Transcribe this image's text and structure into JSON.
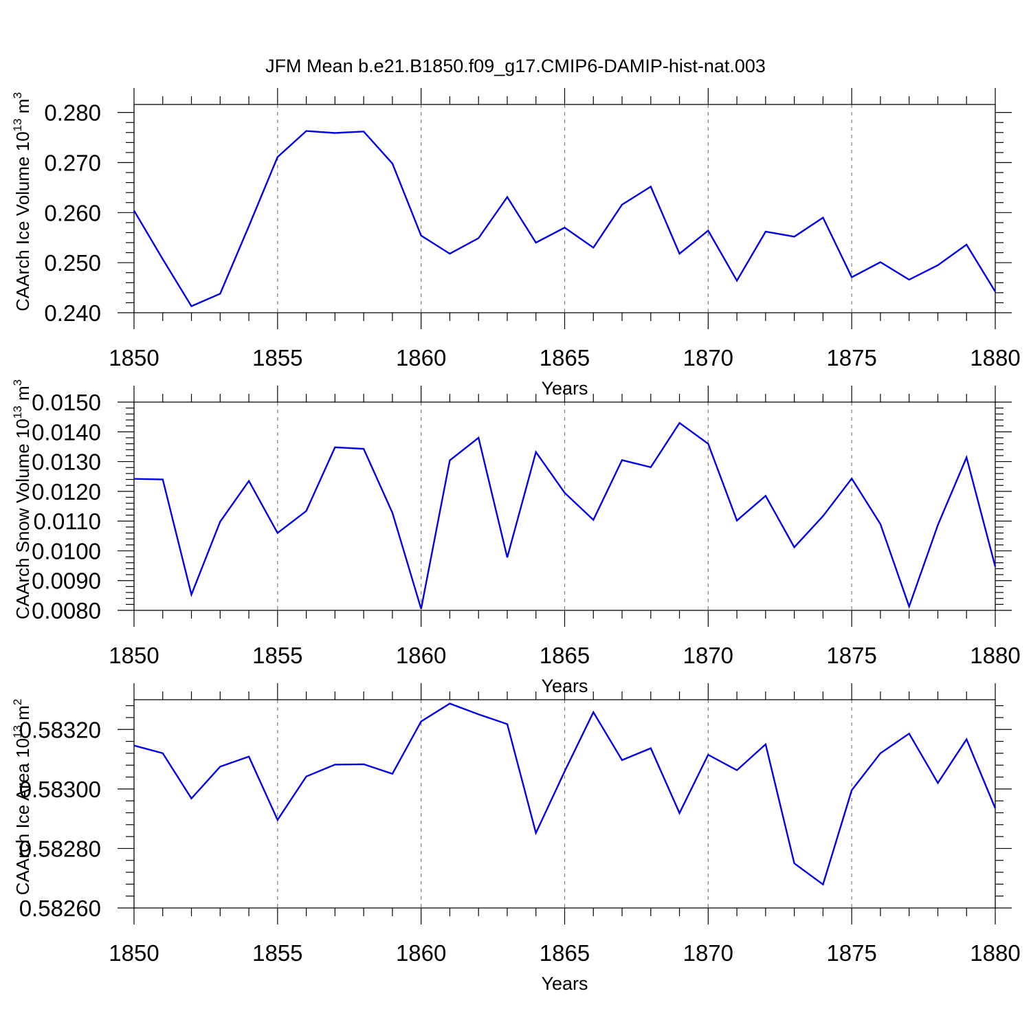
{
  "title": "JFM Mean b.e21.B1850.f09_g17.CMIP6-DAMIP-hist-nat.003",
  "colors": {
    "line": "#0000ee",
    "axes": "#000000",
    "grid": "#808080"
  },
  "chart_data": [
    {
      "type": "line",
      "title": "",
      "xlabel": "Years",
      "ylabel_main": "CAArch Ice Volume 10",
      "ylabel_sup": "13",
      "ylabel_unit": "m",
      "ylabel_unit_sup": "3",
      "xlim": [
        1850,
        1880
      ],
      "ylim": [
        0.24,
        0.2816
      ],
      "x_ticks": [
        1850,
        1855,
        1860,
        1865,
        1870,
        1875,
        1880
      ],
      "x_tick_labels": [
        "1850",
        "1855",
        "1860",
        "1865",
        "1870",
        "1875",
        "1880"
      ],
      "y_ticks": [
        0.24,
        0.25,
        0.26,
        0.27,
        0.28
      ],
      "y_tick_labels": [
        "0.240",
        "0.250",
        "0.260",
        "0.270",
        "0.280"
      ],
      "grid": "vertical dashed at major x ticks",
      "series": [
        {
          "x": [
            1850,
            1851,
            1852,
            1853,
            1854,
            1855,
            1856,
            1857,
            1858,
            1859,
            1860,
            1861,
            1862,
            1863,
            1864,
            1865,
            1866,
            1867,
            1868,
            1869,
            1870,
            1871,
            1872,
            1873,
            1874,
            1875,
            1876,
            1877,
            1878,
            1879,
            1880
          ],
          "values": [
            0.2604,
            0.2507,
            0.2413,
            0.2438,
            0.2573,
            0.2711,
            0.2763,
            0.2759,
            0.2762,
            0.2698,
            0.2554,
            0.2518,
            0.2549,
            0.2631,
            0.254,
            0.257,
            0.253,
            0.2616,
            0.2652,
            0.2518,
            0.2564,
            0.2464,
            0.2562,
            0.2552,
            0.259,
            0.2471,
            0.2501,
            0.2466,
            0.2495,
            0.2536,
            0.2442
          ]
        }
      ]
    },
    {
      "type": "line",
      "title": "",
      "xlabel": "Years",
      "ylabel_main": "CAArch Snow Volume 10",
      "ylabel_sup": "13",
      "ylabel_unit": "m",
      "ylabel_unit_sup": "3",
      "xlim": [
        1850,
        1880
      ],
      "ylim": [
        0.008,
        0.015
      ],
      "x_ticks": [
        1850,
        1855,
        1860,
        1865,
        1870,
        1875,
        1880
      ],
      "x_tick_labels": [
        "1850",
        "1855",
        "1860",
        "1865",
        "1870",
        "1875",
        "1880"
      ],
      "y_ticks": [
        0.008,
        0.009,
        0.01,
        0.011,
        0.012,
        0.013,
        0.014,
        0.015
      ],
      "y_tick_labels": [
        "0.0080",
        "0.0090",
        "0.0100",
        "0.0110",
        "0.0120",
        "0.0130",
        "0.0140",
        "0.0150"
      ],
      "grid": "vertical dashed at major x ticks",
      "series": [
        {
          "x": [
            1850,
            1851,
            1852,
            1853,
            1854,
            1855,
            1856,
            1857,
            1858,
            1859,
            1860,
            1861,
            1862,
            1863,
            1864,
            1865,
            1866,
            1867,
            1868,
            1869,
            1870,
            1871,
            1872,
            1873,
            1874,
            1875,
            1876,
            1877,
            1878,
            1879,
            1880
          ],
          "values": [
            0.01242,
            0.0124,
            0.00853,
            0.01098,
            0.01235,
            0.0106,
            0.01134,
            0.01348,
            0.01343,
            0.01128,
            0.00805,
            0.01304,
            0.0138,
            0.00978,
            0.01332,
            0.01195,
            0.01104,
            0.01305,
            0.01281,
            0.0143,
            0.0136,
            0.01102,
            0.01185,
            0.01012,
            0.01117,
            0.01243,
            0.0109,
            0.00813,
            0.01087,
            0.01314,
            0.00947
          ]
        }
      ]
    },
    {
      "type": "line",
      "title": "",
      "xlabel": "Years",
      "ylabel_main": "CAArch Ice Area 10",
      "ylabel_sup": "13",
      "ylabel_unit": "m",
      "ylabel_unit_sup": "2",
      "xlim": [
        1850,
        1880
      ],
      "ylim": [
        0.5826,
        0.5833
      ],
      "x_ticks": [
        1850,
        1855,
        1860,
        1865,
        1870,
        1875,
        1880
      ],
      "x_tick_labels": [
        "1850",
        "1855",
        "1860",
        "1865",
        "1870",
        "1875",
        "1880"
      ],
      "y_ticks": [
        0.5826,
        0.5828,
        0.583,
        0.5832
      ],
      "y_tick_labels": [
        "0.58260",
        "0.58280",
        "0.58300",
        "0.58320"
      ],
      "grid": "vertical dashed at major x ticks",
      "series": [
        {
          "x": [
            1850,
            1851,
            1852,
            1853,
            1854,
            1855,
            1856,
            1857,
            1858,
            1859,
            1860,
            1861,
            1862,
            1863,
            1864,
            1865,
            1866,
            1867,
            1868,
            1869,
            1870,
            1871,
            1872,
            1873,
            1874,
            1875,
            1876,
            1877,
            1878,
            1879,
            1880
          ],
          "values": [
            0.583146,
            0.58312,
            0.582968,
            0.583075,
            0.583109,
            0.582896,
            0.583042,
            0.583082,
            0.583083,
            0.583051,
            0.583227,
            0.583287,
            0.583251,
            0.583218,
            0.582852,
            0.583059,
            0.583258,
            0.583097,
            0.583137,
            0.582919,
            0.583115,
            0.583063,
            0.58315,
            0.58275,
            0.582679,
            0.582996,
            0.58312,
            0.583186,
            0.58302,
            0.583167,
            0.582935
          ]
        }
      ]
    }
  ]
}
